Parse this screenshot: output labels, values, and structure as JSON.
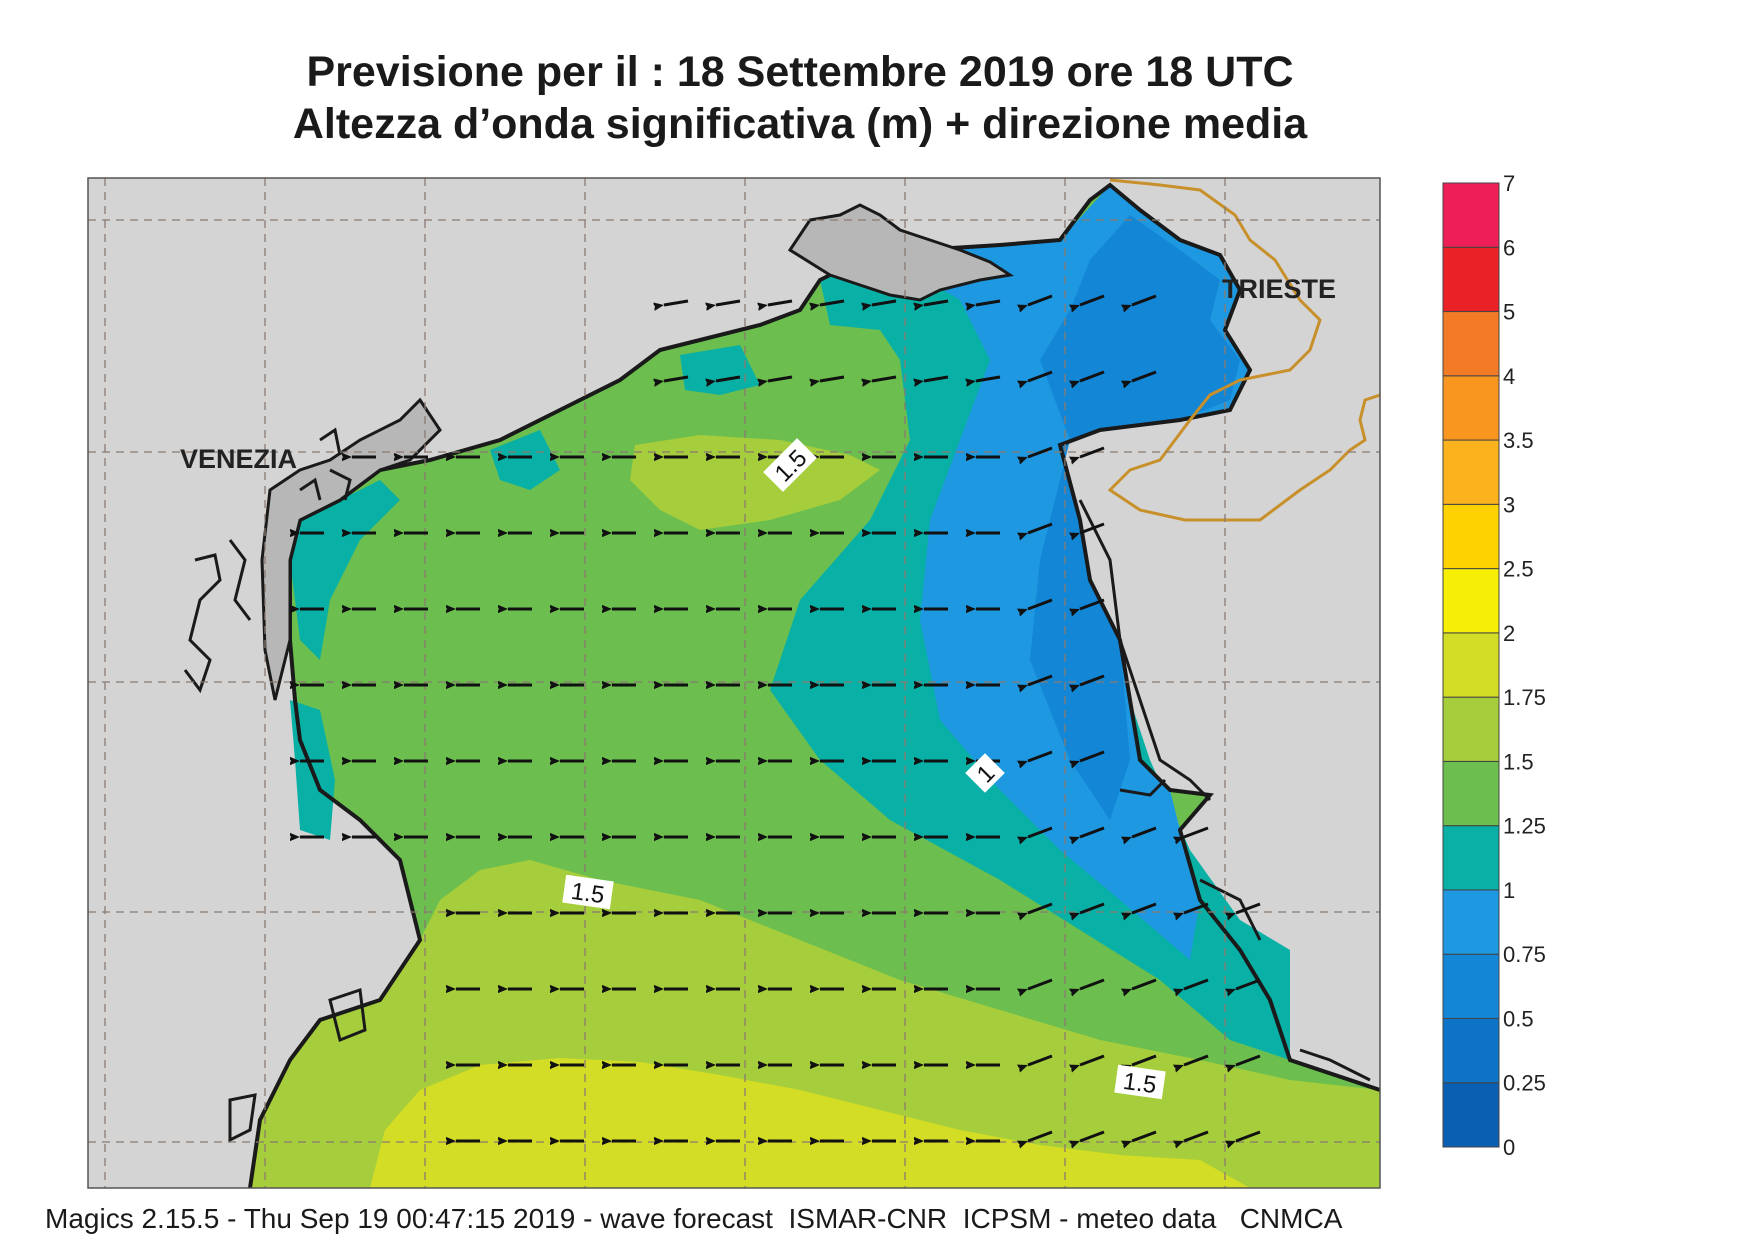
{
  "title": {
    "line1": "Previsione per il  :  18 Settembre 2019   ore 18 UTC",
    "line2": "Altezza d’onda significativa (m) + direzione media"
  },
  "places": {
    "venezia": "VENEZIA",
    "trieste": "TRIESTE"
  },
  "contour_labels": {
    "a": "1.5",
    "b": "1",
    "c": "1.5",
    "d": "1.5"
  },
  "legend": {
    "bins": [
      {
        "label": "0",
        "color": "#0a5fb3"
      },
      {
        "label": "0.25",
        "color": "#0d73c6"
      },
      {
        "label": "0.5",
        "color": "#1386d6"
      },
      {
        "label": "0.75",
        "color": "#1e98e0"
      },
      {
        "label": "1",
        "color": "#09b0a6"
      },
      {
        "label": "1.25",
        "color": "#6cbf4f"
      },
      {
        "label": "1.5",
        "color": "#a6cd3b"
      },
      {
        "label": "1.75",
        "color": "#d4dd25"
      },
      {
        "label": "2",
        "color": "#f7ee06"
      },
      {
        "label": "2.5",
        "color": "#fdd200"
      },
      {
        "label": "3",
        "color": "#fbb21c"
      },
      {
        "label": "3.5",
        "color": "#f89620"
      },
      {
        "label": "4",
        "color": "#f47b26"
      },
      {
        "label": "5",
        "color": "#ea2127"
      },
      {
        "label": "6",
        "color": "#ee1f58"
      }
    ],
    "top_label": "7"
  },
  "wave_direction": "east-to-west (arrows pointing west, slightly WSW)",
  "footer": "Magics 2.15.5 - Thu Sep 19 00:47:15 2019 - wave forecast  ISMAR-CNR  ICPSM - meteo data   CNMCA"
}
